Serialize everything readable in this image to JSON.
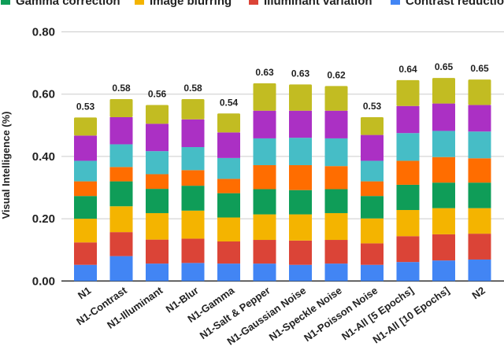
{
  "chart_data": {
    "type": "bar",
    "stacked": true,
    "title": "",
    "xlabel": "",
    "ylabel": "Visual Intelligence (%)",
    "ylim": [
      0,
      0.8
    ],
    "yticks": [
      "0.00",
      "0.20",
      "0.40",
      "0.60",
      "0.80"
    ],
    "grid": true,
    "legend_position": "top",
    "categories": [
      "N1",
      "N1-Contrast",
      "N1-Illuminant",
      "N1-Blur",
      "N1-Gamma",
      "N1-Salt & Pepper",
      "N1-Gaussian Noise",
      "N1-Speckle Noise",
      "N1-Poisson Noise",
      "N1-All [5 Epochs]",
      "N1-All [10 Epochs]",
      "N2"
    ],
    "totals_labels": [
      "0.53",
      "0.58",
      "0.56",
      "0.58",
      "0.54",
      "0.63",
      "0.63",
      "0.62",
      "0.53",
      "0.64",
      "0.65",
      "0.65"
    ],
    "series": [
      {
        "name": "Contrast reduction",
        "color": "#4285F4",
        "values": [
          0.052,
          0.08,
          0.056,
          0.058,
          0.056,
          0.056,
          0.052,
          0.056,
          0.052,
          0.061,
          0.066,
          0.069
        ]
      },
      {
        "name": "Illuminant variation",
        "color": "#DB4437",
        "values": [
          0.072,
          0.077,
          0.077,
          0.078,
          0.071,
          0.076,
          0.078,
          0.076,
          0.069,
          0.083,
          0.084,
          0.083
        ]
      },
      {
        "name": "Image blurring",
        "color": "#F4B400",
        "values": [
          0.076,
          0.083,
          0.085,
          0.09,
          0.077,
          0.082,
          0.084,
          0.086,
          0.08,
          0.084,
          0.084,
          0.082
        ]
      },
      {
        "name": "Gamma correction",
        "color": "#0F9D58",
        "values": [
          0.073,
          0.08,
          0.078,
          0.08,
          0.078,
          0.081,
          0.078,
          0.077,
          0.072,
          0.081,
          0.082,
          0.082
        ]
      },
      {
        "color": "#FF6D00",
        "values": [
          0.047,
          0.046,
          0.047,
          0.05,
          0.046,
          0.077,
          0.08,
          0.074,
          0.047,
          0.077,
          0.082,
          0.078
        ]
      },
      {
        "color": "#46BDC6",
        "values": [
          0.066,
          0.073,
          0.074,
          0.074,
          0.067,
          0.086,
          0.088,
          0.089,
          0.066,
          0.089,
          0.084,
          0.086
        ]
      },
      {
        "color": "#AB30C4",
        "values": [
          0.081,
          0.087,
          0.088,
          0.089,
          0.082,
          0.089,
          0.087,
          0.089,
          0.083,
          0.087,
          0.088,
          0.085
        ]
      },
      {
        "color": "#C2BC22",
        "values": [
          0.058,
          0.058,
          0.06,
          0.065,
          0.061,
          0.088,
          0.084,
          0.079,
          0.057,
          0.083,
          0.082,
          0.082
        ]
      }
    ]
  }
}
